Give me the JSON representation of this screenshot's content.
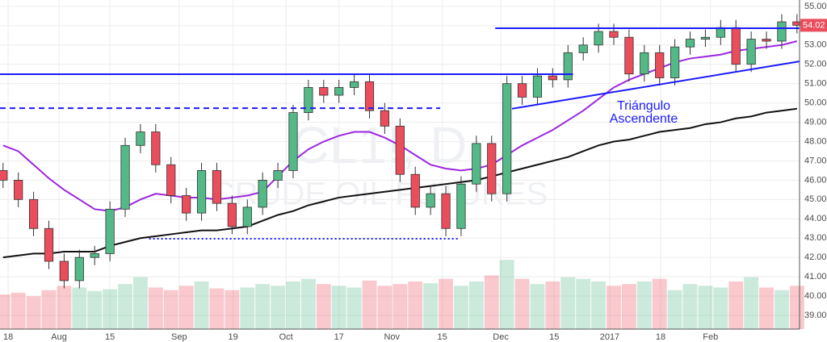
{
  "chart_data": {
    "type": "candlestick",
    "watermark": [
      "CL1!, D",
      "CRUDE OIL FUTURES"
    ],
    "annotation": [
      "Triángulo",
      "Ascendente"
    ],
    "up_color": "#53b987",
    "down_color": "#eb4d5c",
    "grid": true,
    "xlim": [
      -0.6,
      156.5
    ],
    "ylim": [
      38.29,
      55.33
    ],
    "volume_lim": [
      0,
      380
    ],
    "xticks": [
      {
        "value": 1,
        "label": "18"
      },
      {
        "value": 11,
        "label": "Aug"
      },
      {
        "value": 21,
        "label": "15"
      },
      {
        "value": 34.6,
        "label": "Sep"
      },
      {
        "value": 45.2,
        "label": "19"
      },
      {
        "value": 55.6,
        "label": "Oct"
      },
      {
        "value": 66,
        "label": "17"
      },
      {
        "value": 76.4,
        "label": "Nov"
      },
      {
        "value": 86.3,
        "label": "15"
      },
      {
        "value": 97.8,
        "label": "Dec"
      },
      {
        "value": 108.3,
        "label": "15"
      },
      {
        "value": 119.2,
        "label": "2017"
      },
      {
        "value": 129.2,
        "label": "18"
      },
      {
        "value": 139,
        "label": "Feb"
      }
    ],
    "yticks": [
      {
        "value": 39,
        "label": "39.00"
      },
      {
        "value": 40,
        "label": "40.00"
      },
      {
        "value": 41,
        "label": "41.00"
      },
      {
        "value": 42,
        "label": "42.00"
      },
      {
        "value": 43,
        "label": "43.00"
      },
      {
        "value": 44,
        "label": "44.00"
      },
      {
        "value": 45,
        "label": "45.00"
      },
      {
        "value": 46,
        "label": "46.00"
      },
      {
        "value": 47,
        "label": "47.00"
      },
      {
        "value": 48,
        "label": "48.00"
      },
      {
        "value": 49,
        "label": "49.00"
      },
      {
        "value": 50,
        "label": "50.00"
      },
      {
        "value": 51,
        "label": "51.00"
      },
      {
        "value": 52,
        "label": "52.00"
      },
      {
        "value": 53,
        "label": "53.00"
      },
      {
        "value": 54,
        "label": "54.00"
      },
      {
        "value": 55,
        "label": "55.00"
      }
    ],
    "candles": {
      "x": [
        0,
        3,
        6,
        9,
        12,
        15,
        18,
        21,
        24,
        27,
        30,
        33,
        36,
        39,
        42,
        45,
        48,
        51,
        54,
        57,
        60,
        63,
        66,
        69,
        72,
        75,
        78,
        81,
        84,
        87,
        90,
        93,
        96,
        99,
        102,
        105,
        108,
        111,
        114,
        117,
        120,
        123,
        126,
        129,
        132,
        135,
        138,
        141,
        144,
        147,
        150,
        153,
        156
      ],
      "open": [
        46.5,
        46,
        45,
        43.5,
        41.8,
        40.8,
        42,
        42.2,
        44.5,
        47.8,
        48.5,
        46.8,
        45.2,
        44.3,
        46.5,
        44.8,
        43.6,
        44.6,
        46,
        46.5,
        49.5,
        50.8,
        50.4,
        50.8,
        51.1,
        49.6,
        48.8,
        46.3,
        44.6,
        45.3,
        43.5,
        45.8,
        47.9,
        45.3,
        51,
        50.3,
        51.4,
        51.2,
        52.6,
        53,
        53.7,
        53.4,
        51.5,
        52.6,
        51.3,
        52.9,
        53.3,
        53.4,
        53.9,
        52,
        53.3,
        53.2,
        54.2
      ],
      "high": [
        46.9,
        46.4,
        45.4,
        43.9,
        42.2,
        42.4,
        42.6,
        44.9,
        48.2,
        48.9,
        48.9,
        47.2,
        45.6,
        46.9,
        46.9,
        45.2,
        45,
        46.4,
        46.9,
        49.9,
        51.2,
        51.2,
        51.2,
        51.5,
        51.5,
        50,
        49.2,
        46.7,
        45.7,
        45.7,
        46.2,
        48.3,
        48.3,
        51.4,
        51.4,
        51.8,
        51.8,
        53,
        53.4,
        54.1,
        54.1,
        53.8,
        53,
        53,
        53.3,
        53.7,
        53.8,
        54.3,
        54.3,
        53.7,
        53.7,
        54.6,
        54.6
      ],
      "low": [
        45.6,
        44.6,
        43.1,
        41.4,
        40.4,
        40.4,
        41.6,
        41.8,
        44.1,
        47.4,
        46.4,
        44.8,
        43.9,
        43.9,
        44.4,
        43.2,
        43.2,
        44.2,
        45.6,
        46.1,
        49.1,
        50,
        50,
        50.4,
        49.2,
        48.4,
        45.9,
        44.2,
        44.2,
        43.1,
        43.1,
        45.4,
        44.9,
        44.9,
        49.9,
        49.9,
        50.8,
        50.8,
        52.2,
        52.6,
        53,
        51.1,
        51.1,
        50.9,
        50.9,
        52.5,
        52.9,
        53,
        51.6,
        51.6,
        52.8,
        52.8,
        53.6
      ],
      "close": [
        46,
        45,
        43.5,
        41.8,
        40.8,
        42,
        42.2,
        44.5,
        47.8,
        48.5,
        46.8,
        45.2,
        44.3,
        46.5,
        44.8,
        43.6,
        44.6,
        46,
        46.5,
        49.5,
        50.8,
        50.4,
        50.8,
        51.1,
        49.6,
        48.8,
        46.3,
        44.6,
        45.3,
        43.5,
        45.8,
        47.9,
        45.3,
        51,
        50.3,
        51.4,
        51.2,
        52.6,
        53,
        53.7,
        53.4,
        51.5,
        52.6,
        51.3,
        52.9,
        53.3,
        53.4,
        53.9,
        52,
        53.3,
        53.2,
        54.2,
        54.02
      ],
      "volume": [
        40,
        42,
        38,
        45,
        50,
        48,
        44,
        46,
        52,
        60,
        48,
        45,
        50,
        55,
        47,
        45,
        48,
        52,
        50,
        55,
        58,
        52,
        50,
        48,
        56,
        50,
        52,
        55,
        53,
        58,
        50,
        55,
        62,
        80,
        58,
        52,
        55,
        60,
        58,
        55,
        50,
        52,
        55,
        58,
        45,
        52,
        50,
        48,
        55,
        60,
        48,
        45,
        50
      ]
    },
    "ma_lines": [
      {
        "color": "#9c27e0",
        "values": [
          47.8,
          47.5,
          46.8,
          46.1,
          45.5,
          45,
          44.5,
          44.4,
          44.6,
          45,
          45.3,
          45.2,
          45.1,
          45.1,
          45,
          45.1,
          45.2,
          45.4,
          46.2,
          47,
          47.6,
          48,
          48.3,
          48.5,
          48.5,
          48.2,
          47.8,
          47.3,
          46.8,
          46.6,
          46.5,
          46.6,
          46.8,
          47.3,
          47.8,
          48.2,
          48.6,
          49.1,
          49.6,
          50.2,
          50.8,
          51.2,
          51.5,
          51.8,
          52.1,
          52.3,
          52.4,
          52.5,
          52.7,
          52.8,
          52.9,
          53,
          53.2
        ]
      },
      {
        "color": "#111111",
        "values": [
          42,
          42.1,
          42.2,
          42.2,
          42.3,
          42.3,
          42.3,
          42.6,
          42.8,
          43,
          43.1,
          43.2,
          43.3,
          43.4,
          43.4,
          43.5,
          43.6,
          43.9,
          44.2,
          44.4,
          44.7,
          44.9,
          45.1,
          45.2,
          45.3,
          45.4,
          45.5,
          45.6,
          45.7,
          45.8,
          45.9,
          46,
          46.2,
          46.4,
          46.6,
          46.8,
          47,
          47.2,
          47.5,
          47.8,
          48,
          48.1,
          48.3,
          48.5,
          48.6,
          48.7,
          48.9,
          49,
          49.2,
          49.3,
          49.5,
          49.6,
          49.7
        ]
      }
    ],
    "drawn_lines": [
      {
        "x": [
          -0.6,
          112
        ],
        "y": [
          51.49,
          51.49
        ],
        "color": "#1a1aff",
        "style": "solid"
      },
      {
        "x": [
          -0.6,
          85.9
        ],
        "y": [
          49.73,
          49.73
        ],
        "color": "#1a1aff",
        "style": "dashed"
      },
      {
        "x": [
          28.7,
          89.5
        ],
        "y": [
          42.97,
          42.97
        ],
        "color": "#1a1aff",
        "style": "dotted"
      },
      {
        "x": [
          96.7,
          156.5
        ],
        "y": [
          53.87,
          53.87
        ],
        "color": "#1a1aff",
        "style": "solid"
      },
      {
        "x": [
          100,
          156.5
        ],
        "y": [
          49.7,
          52.15
        ],
        "color": "#1a1aff",
        "style": "solid"
      }
    ]
  }
}
